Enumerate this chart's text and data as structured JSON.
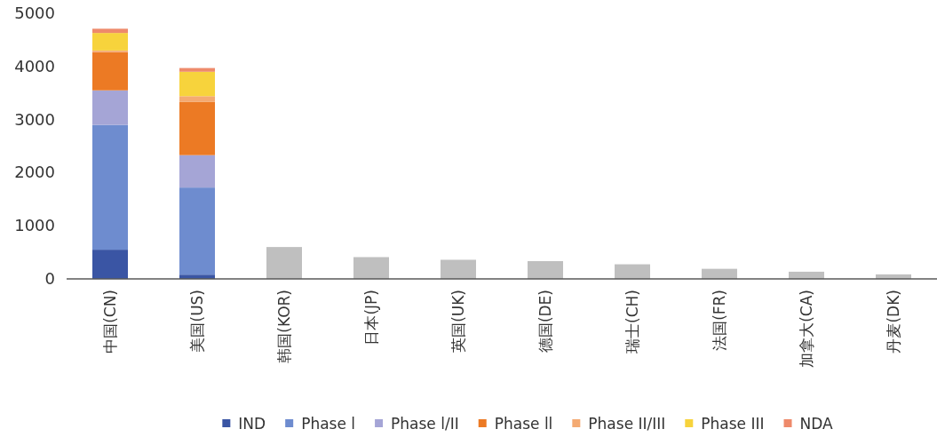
{
  "chart_data": {
    "type": "bar",
    "stacked": true,
    "categories": [
      "中国(CN)",
      "美国(US)",
      "韩国(KOR)",
      "日本(JP)",
      "英国(UK)",
      "德国(DE)",
      "瑞士(CH)",
      "法国(FR)",
      "加拿大(CA)",
      "丹麦(DK)"
    ],
    "series": [
      {
        "color": "#bfbfbf",
        "values": [
          null,
          null,
          600,
          410,
          360,
          335,
          275,
          190,
          135,
          85
        ]
      },
      {
        "name": "IND",
        "color": "#3a55a4",
        "values": [
          550,
          80,
          null,
          null,
          null,
          null,
          null,
          null,
          null,
          null
        ]
      },
      {
        "name": "Phase l",
        "color": "#6e8ccf",
        "values": [
          2350,
          1640,
          null,
          null,
          null,
          null,
          null,
          null,
          null,
          null
        ]
      },
      {
        "name": "Phase l/II",
        "color": "#a5a5d6",
        "values": [
          650,
          610,
          null,
          null,
          null,
          null,
          null,
          null,
          null,
          null
        ]
      },
      {
        "name": "Phase ll",
        "color": "#ec7a24",
        "values": [
          720,
          1000,
          null,
          null,
          null,
          null,
          null,
          null,
          null,
          null
        ]
      },
      {
        "name": "Phase II/III",
        "color": "#f4aa72",
        "values": [
          30,
          110,
          null,
          null,
          null,
          null,
          null,
          null,
          null,
          null
        ]
      },
      {
        "name": "Phase III",
        "color": "#f7d33c",
        "values": [
          330,
          460,
          null,
          null,
          null,
          null,
          null,
          null,
          null,
          null
        ]
      },
      {
        "name": "NDA",
        "color": "#ee8a6b",
        "values": [
          80,
          70,
          null,
          null,
          null,
          null,
          null,
          null,
          null,
          null
        ]
      }
    ],
    "ylim": [
      0,
      5000
    ],
    "yticks": [
      0,
      1000,
      2000,
      3000,
      4000,
      5000
    ],
    "grid": false,
    "legend": "bottom"
  }
}
